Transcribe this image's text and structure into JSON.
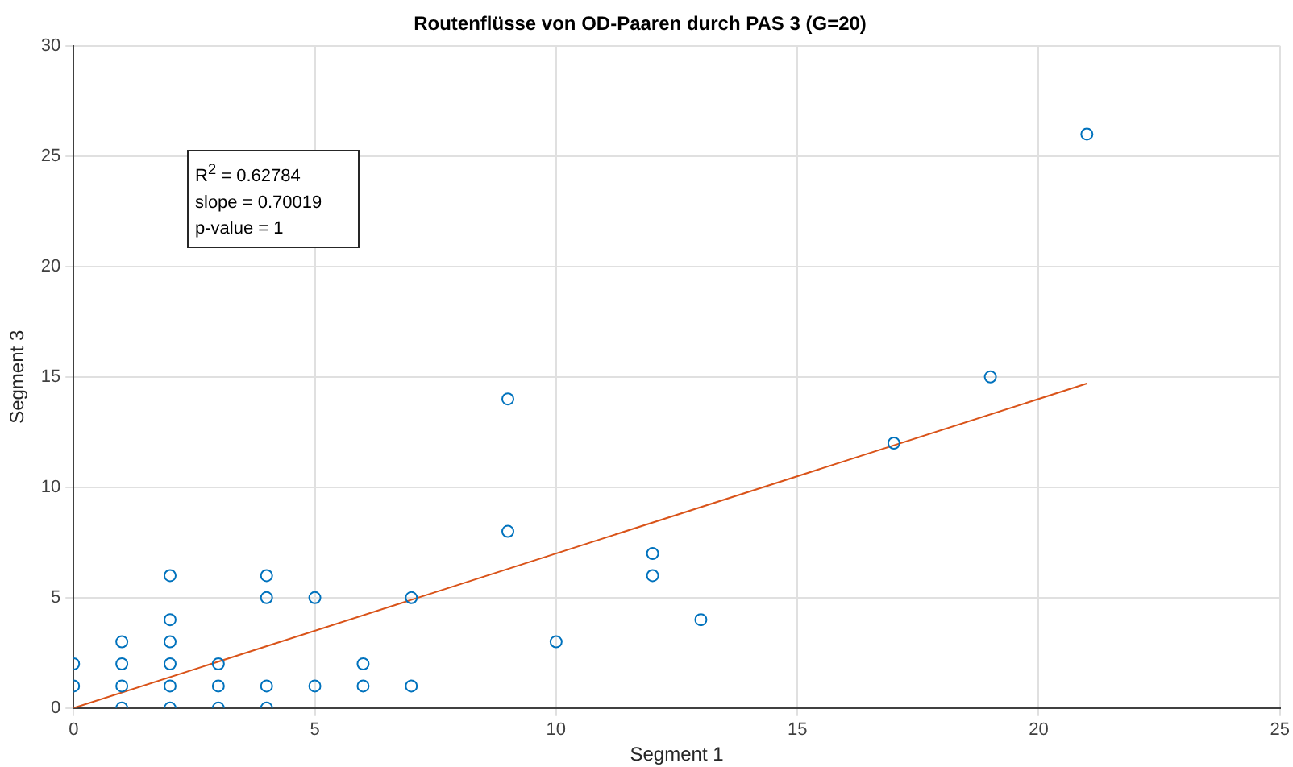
{
  "chart_data": {
    "type": "scatter",
    "title": "Routenflüsse von OD-Paaren durch PAS 3 (G=20)",
    "xlabel": "Segment 1",
    "ylabel": "Segment 3",
    "xlim": [
      0,
      25
    ],
    "xticks": [
      0,
      5,
      10,
      15,
      20,
      25
    ],
    "ylim": [
      0,
      30
    ],
    "yticks": [
      0,
      5,
      10,
      15,
      20,
      25,
      30
    ],
    "grid": true,
    "legend": false,
    "annotations": [
      "R$^{2}$ = 0.62784",
      "slope  = 0.70019",
      "p-value = 1"
    ],
    "series": [
      {
        "color": "#0072bd",
        "marker": "circle",
        "x": [
          0,
          0,
          1,
          1,
          1,
          1,
          2,
          2,
          2,
          2,
          2,
          2,
          3,
          3,
          3,
          4,
          4,
          4,
          4,
          5,
          5,
          6,
          6,
          7,
          7,
          9,
          9,
          10,
          12,
          12,
          13,
          17,
          19,
          21
        ],
        "values": [
          1,
          2,
          0,
          1,
          2,
          3,
          0,
          1,
          2,
          3,
          4,
          6,
          0,
          1,
          2,
          0,
          1,
          5,
          6,
          1,
          5,
          1,
          2,
          1,
          5,
          8,
          14,
          3,
          6,
          7,
          4,
          12,
          15,
          26
        ]
      },
      {
        "type": "line",
        "color": "#d95319",
        "marker": "none",
        "x": [
          0,
          21
        ],
        "values": [
          0,
          14.7
        ]
      }
    ]
  }
}
